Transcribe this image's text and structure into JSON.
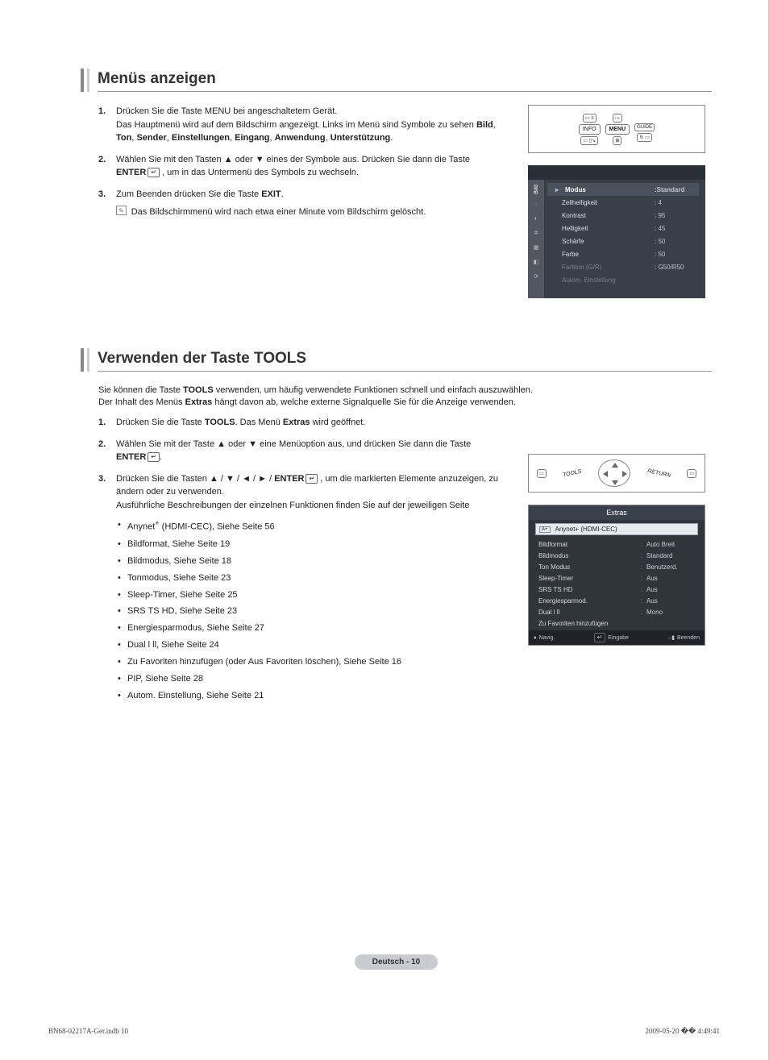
{
  "section1": {
    "title": "Menüs anzeigen",
    "steps": [
      {
        "num": "1.",
        "html": "Drücken Sie die Taste MENU bei angeschaltetem Gerät.<br>Das Hauptmenü wird auf dem Bildschirm angezeigt. Links im Menü sind Symbole zu sehen <b>Bild</b>, <b>Ton</b>, <b>Sender</b>, <b>Einstellungen</b>, <b>Eingang</b>, <b>Anwendung</b>, <b>Unterstützung</b>."
      },
      {
        "num": "2.",
        "html": "Wählen Sie mit den Tasten ▲ oder ▼ eines der Symbole aus. Drücken Sie dann die Taste <b>ENTER</b><span class=\"enter-icon\">↵</span> , um in das Untermenü des Symbols zu wechseln."
      },
      {
        "num": "3.",
        "html": "Zum Beenden drücken Sie die Taste <b>EXIT</b>.",
        "note": "Das Bildschirmmenü wird nach etwa einer Minute vom Bildschirm gelöscht."
      }
    ]
  },
  "remoteButtons1": [
    "INFO",
    "MENU",
    "GUIDE"
  ],
  "osd1": {
    "sideLabel": "Bild",
    "header": {
      "label": "Modus",
      "value": ":Standard"
    },
    "rows": [
      {
        "label": "Zellhelligkeit",
        "value": ": 4"
      },
      {
        "label": "Kontrast",
        "value": ": 95"
      },
      {
        "label": "Helligkeit",
        "value": ": 45"
      },
      {
        "label": "Schärfe",
        "value": ": 50"
      },
      {
        "label": "Farbe",
        "value": ": 50"
      },
      {
        "label": "Farbton (G/R)",
        "value": ": G50/R50",
        "dim": true
      },
      {
        "label": "Autom. Einstellung",
        "value": "",
        "dim": true
      }
    ]
  },
  "section2": {
    "title": "Verwenden der Taste TOOLS",
    "intro": "Sie können die Taste <b>TOOLS</b> verwenden, um häufig verwendete Funktionen schnell und einfach auszuwählen.<br>Der Inhalt des Menüs <b>Extras</b> hängt davon ab, welche externe Signalquelle Sie für die Anzeige verwenden.",
    "steps": [
      {
        "num": "1.",
        "html": "Drücken Sie die Taste <b>TOOLS</b>. Das Menü <b>Extras</b> wird geöffnet."
      },
      {
        "num": "2.",
        "html": "Wählen Sie mit der Taste ▲ oder ▼ eine Menüoption aus, und drücken Sie dann die Taste <b>ENTER</b><span class=\"enter-icon\">↵</span>."
      },
      {
        "num": "3.",
        "html": "Drücken Sie die Tasten ▲ / ▼ / ◄ / ► / <b>ENTER</b><span class=\"enter-icon\">↵</span> , um die markierten Elemente anzuzeigen, zu ändern oder zu verwenden.<br>Ausführliche Beschreibungen der einzelnen Funktionen finden Sie auf der jeweiligen Seite",
        "bullets": [
          "Anynet<sup>+</sup> (HDMI-CEC), Siehe Seite 56",
          "Bildformat, Siehe Seite 19",
          "Bildmodus, Siehe Seite 18",
          "Tonmodus, Siehe Seite 23",
          "Sleep-Timer, Siehe Seite 25",
          "SRS TS HD, Siehe Seite 23",
          "Energiesparmodus, Siehe Seite 27",
          "Dual l ll, Siehe Seite 24",
          "Zu Favoriten hinzufügen (oder Aus Favoriten löschen), Siehe Seite 16",
          "PIP, Siehe Seite 28",
          "Autom. Einstellung, Siehe Seite 21"
        ]
      }
    ]
  },
  "remote2": {
    "left": "TOOLS",
    "right": "RETURN"
  },
  "extras": {
    "title": "Extras",
    "selected": "Anynet+ (HDMI-CEC)",
    "rows": [
      {
        "label": "Bildformat",
        "value": "Auto Breit"
      },
      {
        "label": "Bildmodus",
        "value": "Standard"
      },
      {
        "label": "Ton Modus",
        "value": "Benutzerd."
      },
      {
        "label": "Sleep-Timer",
        "value": "Aus"
      },
      {
        "label": "SRS TS HD",
        "value": "Aus"
      },
      {
        "label": "Energiesparmod.",
        "value": "Aus"
      },
      {
        "label": "Dual l ll",
        "value": "Mono"
      },
      {
        "label": "Zu Favoriten hinzufügen",
        "value": ""
      }
    ],
    "footer": {
      "nav": "Navig.",
      "enter": "Eingabe",
      "exit": "Beenden"
    }
  },
  "pageFooter": "Deutsch - 10",
  "docFooter": {
    "left": "BN68-02217A-Ger.indb   10",
    "right": "2009-05-20   �� 4:49:41"
  }
}
